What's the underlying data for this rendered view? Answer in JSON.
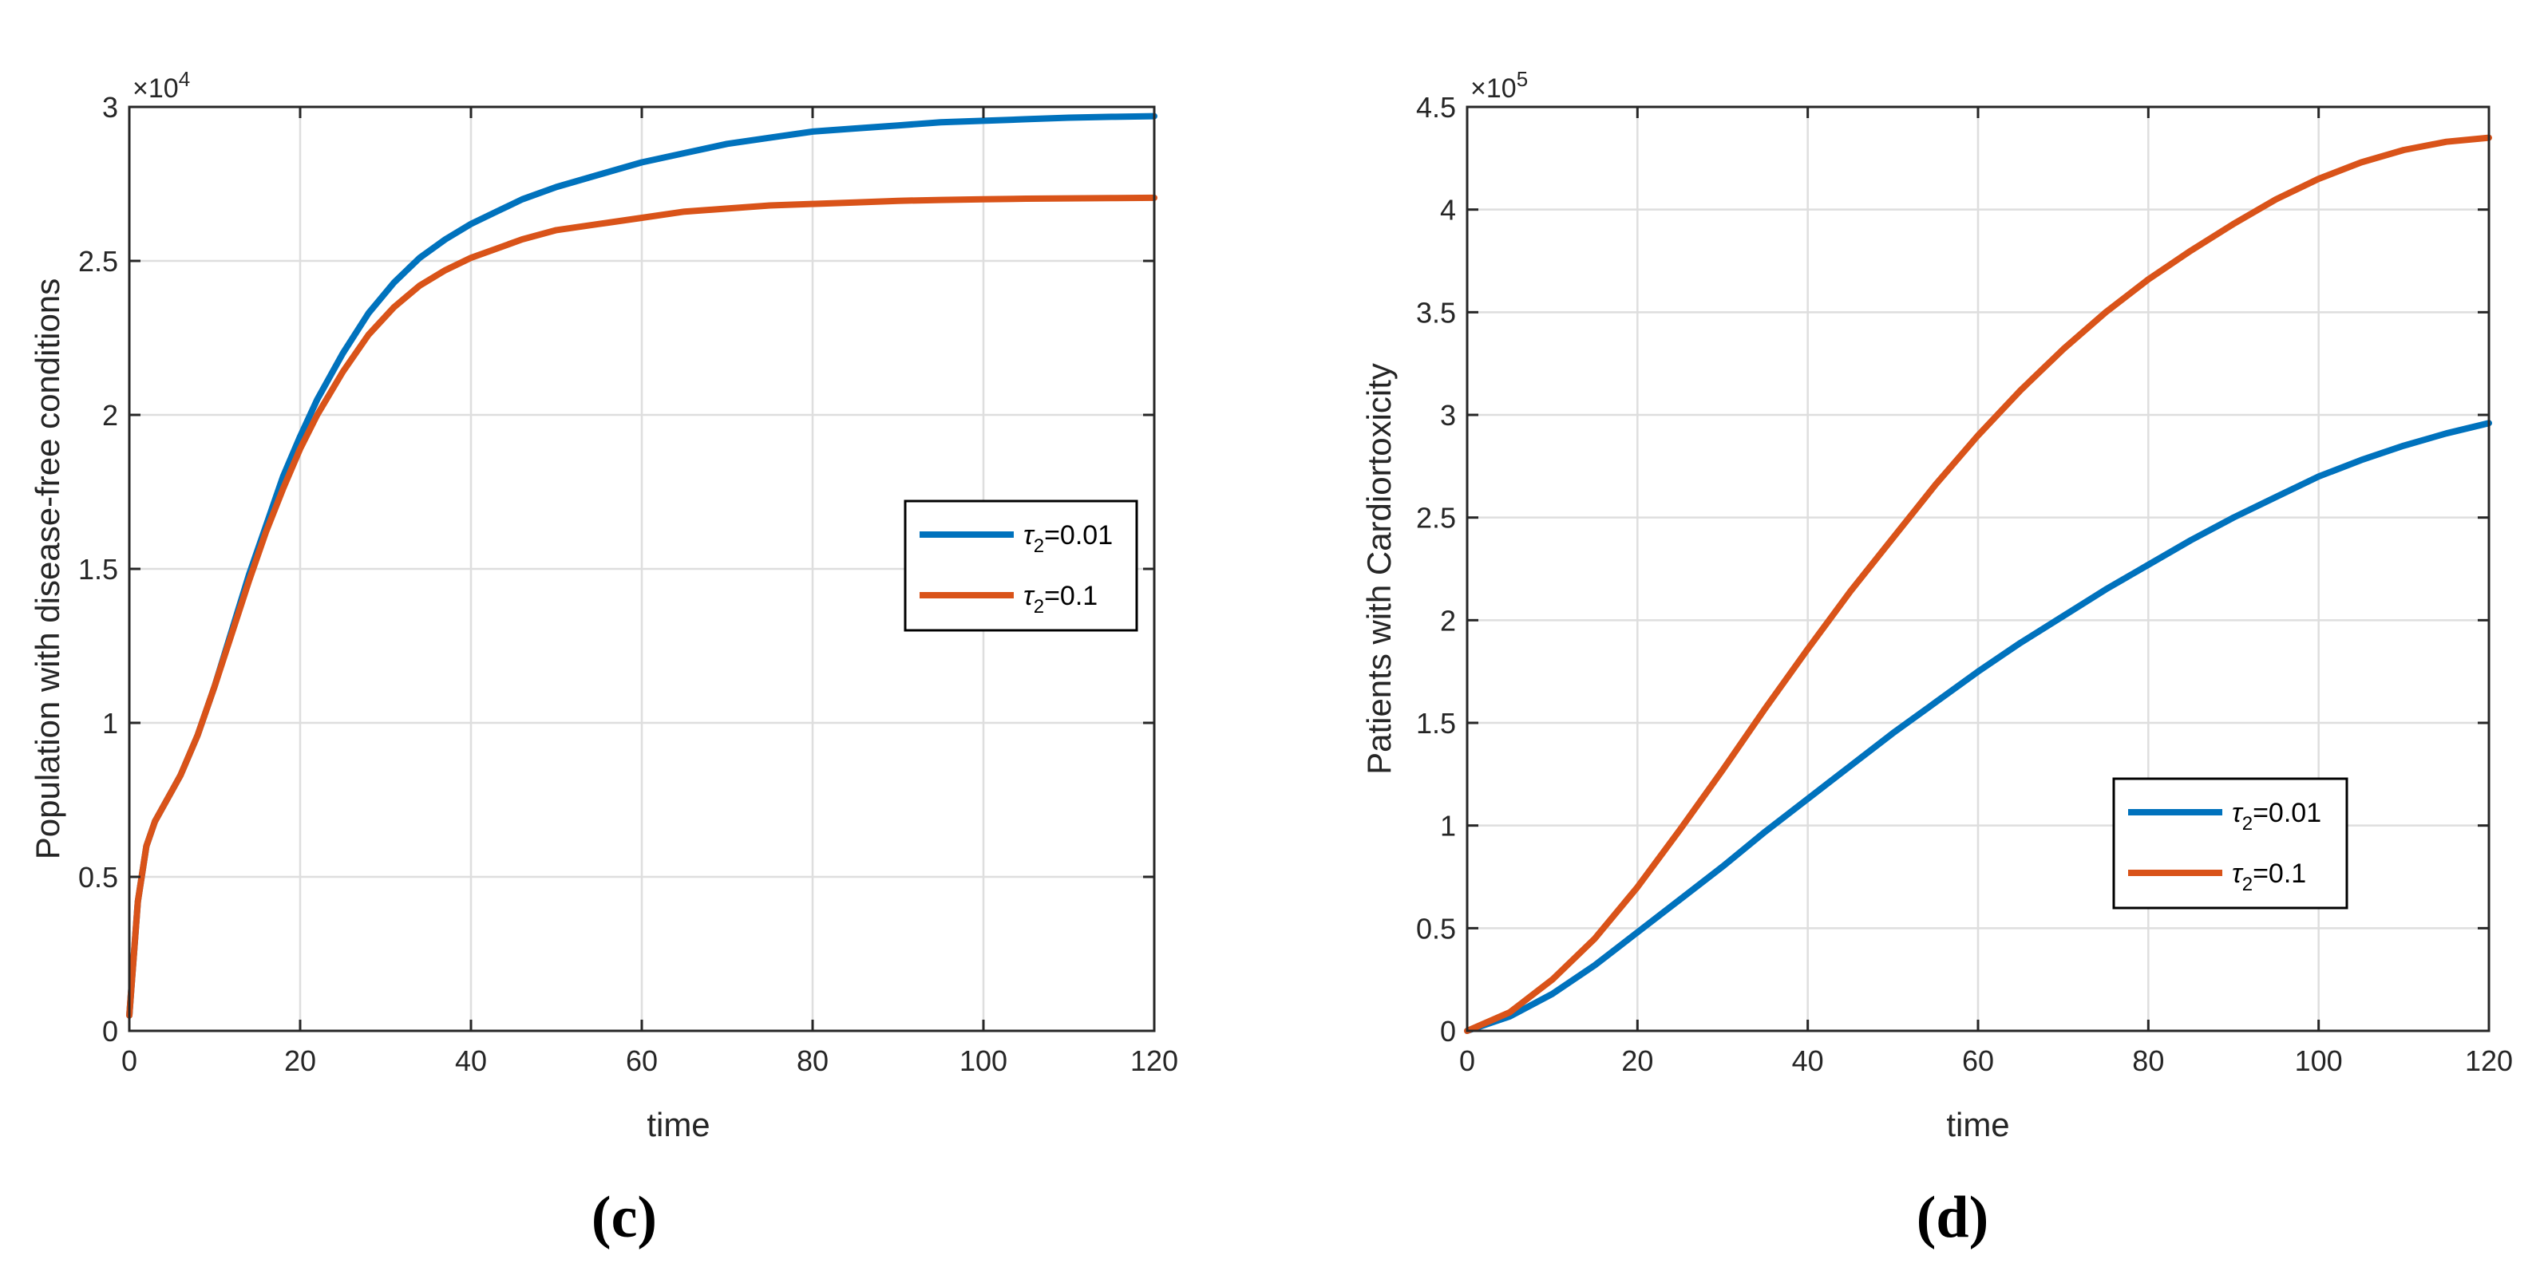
{
  "chart_data": [
    {
      "type": "line",
      "panel": "(c)",
      "xlabel": "time",
      "ylabel": "Population with disease-free conditions",
      "y_multiplier": {
        "base": "×10",
        "exp": "4"
      },
      "xlim": [
        0,
        120
      ],
      "ylim": [
        0,
        3
      ],
      "xticks": [
        0,
        20,
        40,
        60,
        80,
        100,
        120
      ],
      "yticks": [
        0,
        0.5,
        1,
        1.5,
        2,
        2.5,
        3
      ],
      "ytick_labels": [
        "0",
        "0.5",
        "1",
        "1.5",
        "2",
        "2.5",
        "3"
      ],
      "grid": true,
      "legend_position": "right-middle",
      "series": [
        {
          "name": "τ2=0.01",
          "symbol": "τ",
          "sub": "2",
          "value": "=0.01",
          "color": "#0072BD",
          "x": [
            0,
            1,
            2,
            3,
            4,
            5,
            6,
            8,
            10,
            12,
            14,
            16,
            18,
            20,
            22,
            25,
            28,
            31,
            34,
            37,
            40,
            43,
            46,
            50,
            55,
            60,
            65,
            70,
            75,
            80,
            85,
            90,
            95,
            100,
            105,
            110,
            115,
            120
          ],
          "y": [
            0.05,
            0.42,
            0.6,
            0.68,
            0.73,
            0.78,
            0.83,
            0.96,
            1.12,
            1.3,
            1.48,
            1.64,
            1.8,
            1.93,
            2.05,
            2.2,
            2.33,
            2.43,
            2.51,
            2.57,
            2.62,
            2.66,
            2.7,
            2.74,
            2.78,
            2.82,
            2.85,
            2.88,
            2.9,
            2.92,
            2.93,
            2.94,
            2.95,
            2.955,
            2.96,
            2.965,
            2.968,
            2.97
          ]
        },
        {
          "name": "τ2=0.1",
          "symbol": "τ",
          "sub": "2",
          "value": "=0.1",
          "color": "#D95319",
          "x": [
            0,
            1,
            2,
            3,
            4,
            5,
            6,
            8,
            10,
            12,
            14,
            16,
            18,
            20,
            22,
            25,
            28,
            31,
            34,
            37,
            40,
            43,
            46,
            50,
            55,
            60,
            65,
            70,
            75,
            80,
            85,
            90,
            95,
            100,
            105,
            110,
            115,
            120
          ],
          "y": [
            0.05,
            0.42,
            0.6,
            0.68,
            0.73,
            0.78,
            0.83,
            0.96,
            1.12,
            1.29,
            1.46,
            1.62,
            1.76,
            1.89,
            2.0,
            2.14,
            2.26,
            2.35,
            2.42,
            2.47,
            2.51,
            2.54,
            2.57,
            2.6,
            2.62,
            2.64,
            2.66,
            2.67,
            2.68,
            2.685,
            2.69,
            2.695,
            2.698,
            2.7,
            2.702,
            2.703,
            2.704,
            2.705
          ]
        }
      ]
    },
    {
      "type": "line",
      "panel": "(d)",
      "xlabel": "time",
      "ylabel": "Patients with Cardiortoxicity",
      "y_multiplier": {
        "base": "×10",
        "exp": "5"
      },
      "xlim": [
        0,
        120
      ],
      "ylim": [
        0,
        4.5
      ],
      "xticks": [
        0,
        20,
        40,
        60,
        80,
        100,
        120
      ],
      "yticks": [
        0,
        0.5,
        1,
        1.5,
        2,
        2.5,
        3,
        3.5,
        4,
        4.5
      ],
      "ytick_labels": [
        "0",
        "0.5",
        "1",
        "1.5",
        "2",
        "2.5",
        "3",
        "3.5",
        "4",
        "4.5"
      ],
      "grid": true,
      "legend_position": "bottom-right",
      "series": [
        {
          "name": "τ2=0.01",
          "symbol": "τ",
          "sub": "2",
          "value": "=0.01",
          "color": "#0072BD",
          "x": [
            0,
            5,
            10,
            15,
            20,
            25,
            30,
            35,
            40,
            45,
            50,
            55,
            60,
            65,
            70,
            75,
            80,
            85,
            90,
            95,
            100,
            105,
            110,
            115,
            120
          ],
          "y": [
            0,
            0.07,
            0.18,
            0.32,
            0.48,
            0.64,
            0.8,
            0.97,
            1.13,
            1.29,
            1.45,
            1.6,
            1.75,
            1.89,
            2.02,
            2.15,
            2.27,
            2.39,
            2.5,
            2.6,
            2.7,
            2.78,
            2.85,
            2.91,
            2.96
          ]
        },
        {
          "name": "τ2=0.1",
          "symbol": "τ",
          "sub": "2",
          "value": "=0.1",
          "color": "#D95319",
          "x": [
            0,
            5,
            10,
            15,
            20,
            25,
            30,
            35,
            40,
            45,
            50,
            55,
            60,
            65,
            70,
            75,
            80,
            85,
            90,
            95,
            100,
            105,
            110,
            115,
            120
          ],
          "y": [
            0,
            0.09,
            0.25,
            0.45,
            0.7,
            0.98,
            1.27,
            1.57,
            1.86,
            2.14,
            2.4,
            2.66,
            2.9,
            3.12,
            3.32,
            3.5,
            3.66,
            3.8,
            3.93,
            4.05,
            4.15,
            4.23,
            4.29,
            4.33,
            4.35
          ]
        }
      ]
    }
  ]
}
